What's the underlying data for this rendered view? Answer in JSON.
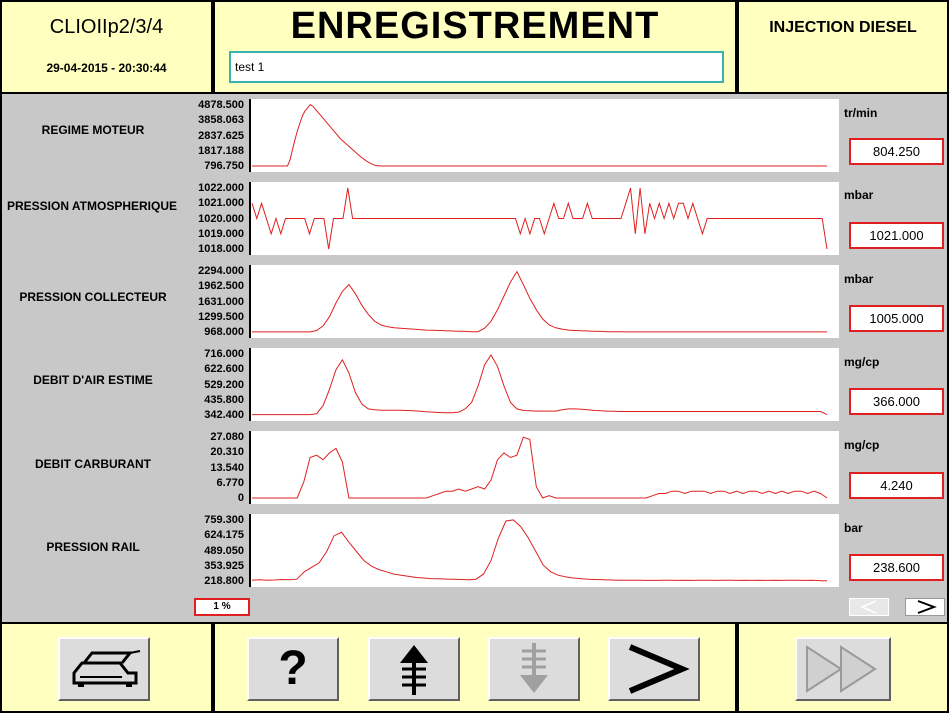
{
  "header": {
    "model": "CLIOIIp2/3/4",
    "datetime": "29-04-2015 - 20:30:44",
    "title": "ENREGISTREMENT",
    "recording_name": "test 1",
    "system": "INJECTION DIESEL"
  },
  "params": [
    {
      "label": "REGIME MOTEUR",
      "unit": "tr/min",
      "value": "804.250",
      "ticks": [
        "4878.500",
        "3858.063",
        "2837.625",
        "1817.188",
        "796.750"
      ],
      "range": [
        796.75,
        4878.5
      ],
      "series": [
        800,
        800,
        800,
        800,
        800,
        800,
        800,
        800,
        800,
        800,
        800,
        800,
        800,
        800,
        800,
        1200,
        1900,
        2600,
        3200,
        3700,
        4200,
        4500,
        4700,
        4900,
        4800,
        4600,
        4400,
        4200,
        4000,
        3800,
        3600,
        3400,
        3200,
        3000,
        2800,
        2600,
        2450,
        2300,
        2150,
        2000,
        1850,
        1700,
        1550,
        1400,
        1280,
        1150,
        1050,
        950,
        880,
        830,
        810,
        800,
        800,
        800,
        800,
        800,
        800,
        800,
        800,
        800,
        800,
        800,
        800,
        800,
        800,
        800,
        800,
        800,
        800,
        800,
        800,
        800,
        800,
        800,
        800,
        800,
        800,
        800,
        800,
        800,
        800,
        800,
        800,
        800,
        800,
        800,
        800,
        800,
        800,
        800,
        800,
        800,
        800,
        800,
        800,
        800,
        800,
        800,
        800,
        800,
        800,
        800,
        800,
        800,
        800,
        800,
        800,
        800,
        800,
        800,
        800,
        800,
        800,
        800,
        800,
        800,
        800,
        800,
        800,
        800,
        800,
        800,
        800,
        800,
        800,
        800,
        800,
        800,
        800,
        800,
        800,
        800,
        800,
        800,
        800,
        800,
        800,
        800,
        800,
        800,
        800,
        800,
        800,
        800,
        800,
        800,
        800,
        800,
        800,
        800,
        800,
        800,
        800,
        800,
        800,
        800,
        800,
        800,
        800,
        800,
        800,
        800,
        800,
        800,
        800,
        800,
        800,
        800,
        800,
        800,
        800,
        800,
        800,
        800,
        800,
        800,
        800,
        800,
        800,
        800,
        800,
        800,
        800,
        800,
        800,
        800,
        800,
        800,
        800,
        800,
        800,
        800,
        800,
        800,
        800,
        800,
        800,
        800,
        800,
        800,
        800,
        800,
        800,
        800,
        800,
        800,
        800,
        800,
        800,
        800,
        800,
        800,
        800,
        800,
        800,
        800,
        800,
        800,
        800,
        800,
        800,
        800,
        800,
        800,
        800,
        800,
        800,
        800
      ]
    },
    {
      "label": "PRESSION ATMOSPHERIQUE",
      "unit": "mbar",
      "value": "1021.000",
      "ticks": [
        "1022.000",
        "1021.000",
        "1020.000",
        "1019.000",
        "1018.000"
      ],
      "range": [
        1018,
        1022
      ],
      "series": [
        1021,
        1020,
        1021,
        1020,
        1019,
        1020,
        1019,
        1020,
        1020,
        1020,
        1020,
        1020,
        1019,
        1020,
        1020,
        1020,
        1018,
        1020,
        1020,
        1020,
        1022,
        1020,
        1020,
        1020,
        1020,
        1020,
        1020,
        1020,
        1020,
        1020,
        1020,
        1020,
        1020,
        1020,
        1020,
        1020,
        1020,
        1020,
        1020,
        1020,
        1020,
        1020,
        1020,
        1020,
        1020,
        1020,
        1020,
        1020,
        1020,
        1020,
        1020,
        1020,
        1020,
        1020,
        1020,
        1020,
        1019,
        1020,
        1019,
        1020,
        1020,
        1019,
        1020,
        1021,
        1020,
        1020,
        1021,
        1020,
        1020,
        1020,
        1021,
        1020,
        1020,
        1020,
        1020,
        1020,
        1020,
        1020,
        1021,
        1022,
        1019,
        1022,
        1019,
        1021,
        1020,
        1021,
        1020,
        1021,
        1020,
        1021,
        1021,
        1020,
        1021,
        1020,
        1019,
        1020,
        1020,
        1020,
        1020,
        1020,
        1020,
        1020,
        1020,
        1020,
        1020,
        1020,
        1020,
        1020,
        1020,
        1020,
        1020,
        1020,
        1020,
        1020,
        1020,
        1020,
        1020,
        1020,
        1020,
        1020,
        1018
      ]
    },
    {
      "label": "PRESSION COLLECTEUR",
      "unit": "mbar",
      "value": "1005.000",
      "ticks": [
        "2294.000",
        "1962.500",
        "1631.000",
        "1299.500",
        "968.000"
      ],
      "range": [
        968,
        2294
      ],
      "series": [
        970,
        970,
        970,
        970,
        970,
        970,
        970,
        970,
        970,
        970,
        1000,
        1100,
        1300,
        1600,
        1850,
        2000,
        1800,
        1550,
        1350,
        1200,
        1120,
        1080,
        1060,
        1050,
        1040,
        1030,
        1020,
        1010,
        1005,
        1000,
        995,
        990,
        985,
        980,
        975,
        975,
        1050,
        1200,
        1450,
        1750,
        2050,
        2280,
        2000,
        1700,
        1450,
        1250,
        1120,
        1060,
        1030,
        1010,
        1000,
        995,
        990,
        985,
        980,
        975,
        975,
        972,
        970,
        970,
        970,
        970,
        970,
        970,
        970,
        970,
        970,
        970,
        970,
        970,
        970,
        970,
        970,
        970,
        970,
        970,
        970,
        970,
        970,
        970,
        970,
        970,
        970,
        970,
        970,
        970,
        970,
        970,
        970,
        970
      ]
    },
    {
      "label": "DEBIT D'AIR ESTIME",
      "unit": "mg/cp",
      "value": "366.000",
      "ticks": [
        "716.000",
        "622.600",
        "529.200",
        "435.800",
        "342.400"
      ],
      "range": [
        342.4,
        716
      ],
      "series": [
        345,
        345,
        345,
        345,
        345,
        345,
        345,
        345,
        345,
        345,
        350,
        400,
        500,
        620,
        680,
        600,
        480,
        410,
        380,
        375,
        372,
        372,
        372,
        372,
        370,
        368,
        365,
        362,
        360,
        358,
        356,
        356,
        360,
        380,
        420,
        520,
        650,
        710,
        640,
        520,
        420,
        380,
        370,
        368,
        366,
        366,
        366,
        366,
        375,
        380,
        380,
        378,
        375,
        370,
        368,
        366,
        365,
        364,
        364,
        364,
        364,
        364,
        364,
        364,
        364,
        364,
        364,
        364,
        364,
        364,
        364,
        364,
        364,
        364,
        364,
        364,
        364,
        364,
        364,
        364,
        364,
        364,
        364,
        364,
        364,
        364,
        364,
        364,
        364,
        345
      ]
    },
    {
      "label": "DEBIT CARBURANT",
      "unit": "mg/cp",
      "value": "4.240",
      "ticks": [
        "27.080",
        "20.310",
        "13.540",
        "6.770",
        "0"
      ],
      "range": [
        0,
        27.08
      ],
      "series": [
        0,
        0,
        0,
        0,
        0,
        0,
        0,
        0,
        7,
        18,
        19,
        17,
        20,
        22,
        16,
        0,
        0,
        0,
        0,
        0,
        0,
        0,
        0,
        0,
        0,
        0,
        0,
        0,
        1,
        2,
        3,
        3,
        4,
        3,
        4,
        5,
        4,
        8,
        17,
        20,
        18,
        19,
        27,
        26,
        5,
        0,
        1,
        0,
        0,
        0,
        0,
        0,
        0,
        0,
        0,
        0,
        0,
        0,
        0,
        0,
        0,
        0,
        1,
        2,
        2,
        3,
        3,
        2,
        3,
        3,
        3,
        2,
        3,
        3,
        2,
        3,
        2,
        3,
        3,
        2,
        3,
        2,
        3,
        2,
        3,
        3,
        2,
        3,
        2,
        0
      ]
    },
    {
      "label": "PRESSION RAIL",
      "unit": "bar",
      "value": "238.600",
      "ticks": [
        "759.300",
        "624.175",
        "489.050",
        "353.925",
        "218.800"
      ],
      "range": [
        218.8,
        759.3
      ],
      "series": [
        225,
        230,
        225,
        228,
        232,
        230,
        235,
        300,
        340,
        380,
        480,
        620,
        650,
        560,
        480,
        400,
        350,
        320,
        300,
        280,
        270,
        260,
        250,
        245,
        240,
        238,
        236,
        234,
        232,
        230,
        235,
        280,
        400,
        600,
        750,
        760,
        700,
        600,
        480,
        360,
        300,
        270,
        255,
        245,
        240,
        235,
        232,
        230,
        228,
        226,
        226,
        226,
        226,
        224,
        224,
        226,
        225,
        224,
        226,
        224,
        225,
        226,
        224,
        225,
        226,
        224,
        225,
        224,
        225,
        224,
        226,
        224,
        225,
        226,
        224,
        225,
        222,
        220
      ]
    }
  ],
  "progress": {
    "label": "1 %",
    "value": 1
  },
  "nav": {
    "prev_label": "<",
    "next_label": ">"
  },
  "toolbar": {
    "help_label": "?"
  }
}
